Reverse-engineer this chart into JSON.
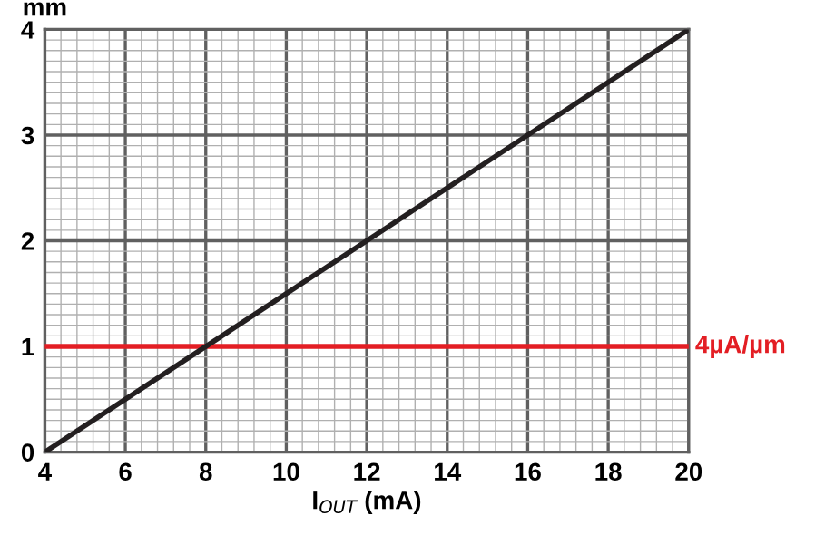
{
  "chart_data": {
    "type": "line",
    "xlabel": "I$_{OUT}$ (mA)",
    "ylabel": "mm",
    "x": [
      4,
      20
    ],
    "series": [
      {
        "color": "#231f20",
        "values": [
          0,
          4
        ]
      }
    ],
    "xlim": [
      4,
      20
    ],
    "ylim": [
      0,
      4
    ],
    "xticks": [
      4,
      6,
      8,
      10,
      12,
      14,
      16,
      18,
      20
    ],
    "yticks": [
      0,
      1,
      2,
      3,
      4
    ],
    "ref_lines": [
      {
        "axis": "y",
        "value": 1,
        "label": "4µA/µm",
        "color": "#e31e24"
      }
    ],
    "grid": true,
    "legend": false,
    "marker": "none",
    "line_style": "solid"
  }
}
